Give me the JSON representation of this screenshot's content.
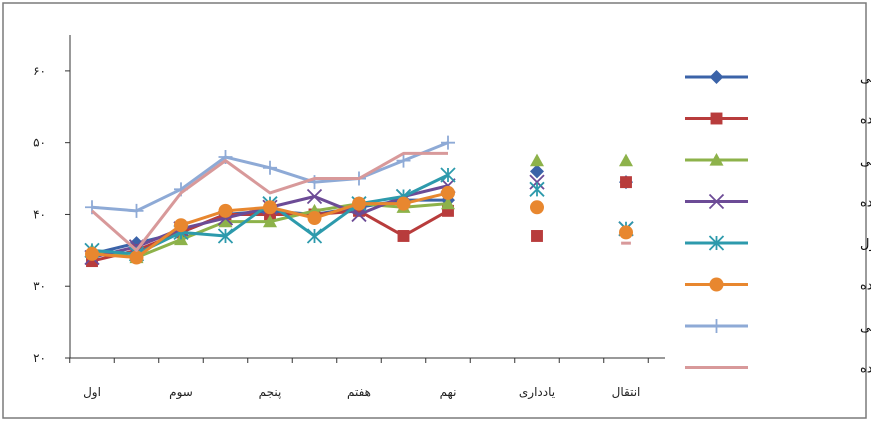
{
  "chart_data": {
    "type": "line",
    "title": "",
    "xlabel": "",
    "ylabel": "",
    "ylim": [
      20,
      65
    ],
    "yticks": [
      20,
      30,
      40,
      50,
      60
    ],
    "ytick_labels": [
      "۲۰",
      "۳۰",
      "۴۰",
      "۵۰",
      "۶۰"
    ],
    "categories": [
      "اول",
      "",
      "سوم",
      "",
      "پنجم",
      "",
      "هفتم",
      "",
      "نهم",
      "",
      "یادداری",
      "",
      "انتقال"
    ],
    "connected_points": 9,
    "legend_position": "right",
    "grid": false,
    "series": [
      {
        "name": "تصادفی خودکنترلی",
        "color": "#3b63a8",
        "marker": "diamond",
        "values": [
          34.5,
          36.0,
          37.5,
          40.0,
          40.5,
          40.0,
          41.0,
          42.0,
          42.0,
          null,
          46.0,
          null,
          44.5
        ]
      },
      {
        "name": "تصادفی جفت شده",
        "color": "#b83c3c",
        "marker": "square",
        "values": [
          33.5,
          35.0,
          37.5,
          40.0,
          40.0,
          40.0,
          40.5,
          37.0,
          40.5,
          null,
          37.0,
          null,
          44.5
        ]
      },
      {
        "name": "سریالی خودکنترلی",
        "color": "#8db24a",
        "marker": "triangle",
        "values": [
          35.0,
          34.0,
          36.5,
          39.0,
          39.0,
          40.5,
          41.5,
          41.0,
          41.5,
          null,
          47.5,
          null,
          47.5
        ]
      },
      {
        "name": "سریالی جفت شده",
        "color": "#6c4b96",
        "marker": "x",
        "values": [
          34.0,
          35.5,
          38.0,
          39.5,
          41.0,
          42.5,
          40.0,
          42.5,
          44.0,
          null,
          44.5,
          null,
          38.0
        ]
      },
      {
        "name": "مسدود خودکنترل",
        "color": "#2d9aac",
        "marker": "asterisk",
        "values": [
          35.0,
          34.5,
          37.5,
          37.0,
          41.5,
          37.0,
          41.5,
          42.5,
          45.5,
          null,
          43.5,
          null,
          38.0
        ]
      },
      {
        "name": "مسدود جفت شده",
        "color": "#e8872f",
        "marker": "circle",
        "values": [
          34.5,
          34.0,
          38.5,
          40.5,
          41.0,
          39.5,
          41.5,
          41.5,
          43.0,
          null,
          41.0,
          null,
          37.5
        ]
      },
      {
        "name": "ثابت خودکنترلی",
        "color": "#8eaad6",
        "marker": "plus",
        "values": [
          41.0,
          40.5,
          43.5,
          48.0,
          46.5,
          44.5,
          45.0,
          47.5,
          50.0,
          null,
          null,
          null,
          null
        ]
      },
      {
        "name": "ثابت جفت شده",
        "color": "#d8999a",
        "marker": "dash",
        "values": [
          40.5,
          35.0,
          43.0,
          47.5,
          43.0,
          45.0,
          45.0,
          48.5,
          48.5,
          null,
          null,
          null,
          36.0
        ]
      }
    ]
  }
}
